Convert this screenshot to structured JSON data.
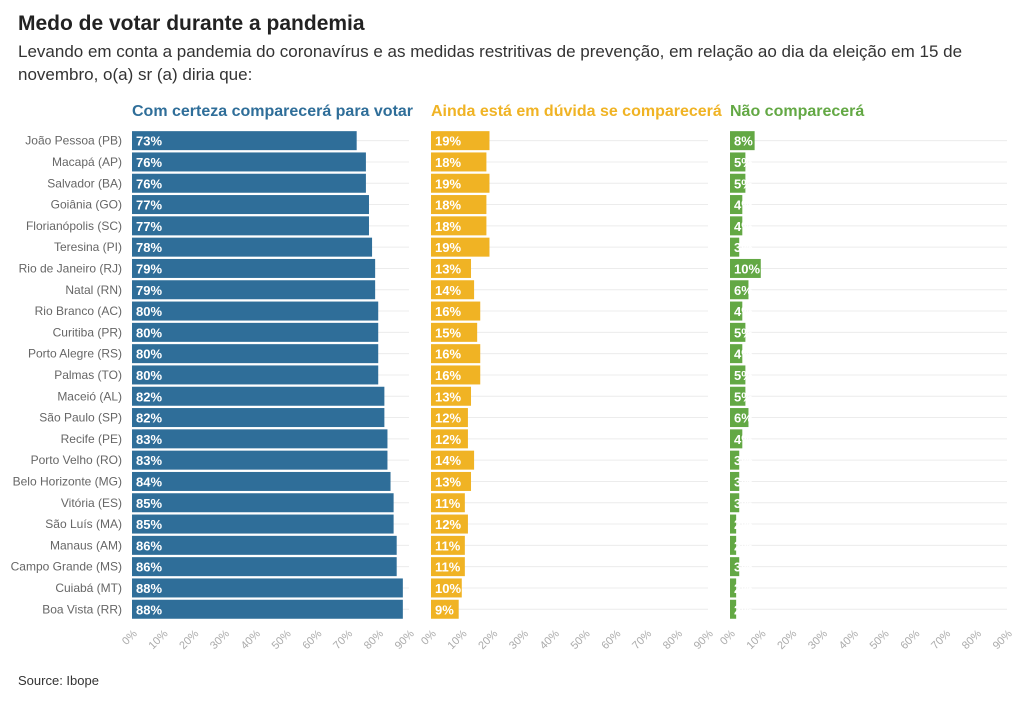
{
  "title": "Medo de votar durante a pandemia",
  "subtitle": "Levando em conta a pandemia do coronavírus e as medidas restritivas de prevenção, em relação ao dia da eleição em 15 de novembro, o(a) sr (a) diria que:",
  "source": "Source: Ibope",
  "colors": {
    "com_certeza": "#2f6e99",
    "em_duvida": "#f0b324",
    "nao": "#63a844"
  },
  "chart_data": {
    "type": "bar",
    "orientation": "horizontal",
    "categories": [
      "João Pessoa (PB)",
      "Macapá (AP)",
      "Salvador (BA)",
      "Goiânia (GO)",
      "Florianópolis (SC)",
      "Teresina (PI)",
      "Rio de Janeiro (RJ)",
      "Natal (RN)",
      "Rio Branco (AC)",
      "Curitiba (PR)",
      "Porto Alegre (RS)",
      "Palmas (TO)",
      "Maceió (AL)",
      "São Paulo (SP)",
      "Recife (PE)",
      "Porto Velho (RO)",
      "Belo Horizonte (MG)",
      "Vitória (ES)",
      "São Luís (MA)",
      "Manaus (AM)",
      "Campo Grande (MS)",
      "Cuiabá (MT)",
      "Boa Vista (RR)"
    ],
    "xlim": [
      0,
      90
    ],
    "x_ticks": [
      "0%",
      "10%",
      "20%",
      "30%",
      "40%",
      "50%",
      "60%",
      "70%",
      "80%",
      "90%"
    ],
    "grid": true,
    "series": [
      {
        "name": "Com certeza comparecerá para votar",
        "color": "#2f6e99",
        "values": [
          73,
          76,
          76,
          77,
          77,
          78,
          79,
          79,
          80,
          80,
          80,
          80,
          82,
          82,
          83,
          83,
          84,
          85,
          85,
          86,
          86,
          88,
          88
        ]
      },
      {
        "name": "Ainda está em dúvida se comparecerá",
        "color": "#f0b324",
        "values": [
          19,
          18,
          19,
          18,
          18,
          19,
          13,
          14,
          16,
          15,
          16,
          16,
          13,
          12,
          12,
          14,
          13,
          11,
          12,
          11,
          11,
          10,
          9
        ]
      },
      {
        "name": "Não comparecerá",
        "color": "#63a844",
        "values": [
          8,
          5,
          5,
          4,
          4,
          3,
          10,
          6,
          4,
          5,
          4,
          5,
          5,
          6,
          4,
          3,
          3,
          3,
          2,
          2,
          3,
          2,
          2
        ]
      }
    ]
  }
}
